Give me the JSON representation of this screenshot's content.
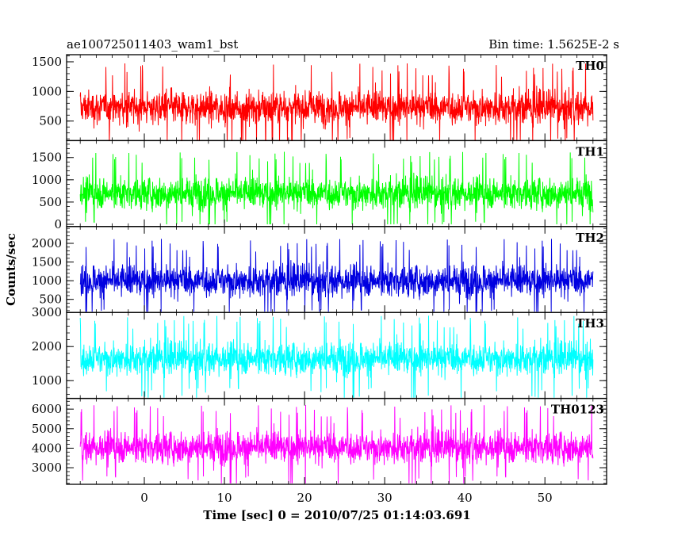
{
  "header": {
    "title": "ae100725011403_wam1_bst",
    "bin_time": "Bin time: 1.5625E-2 s"
  },
  "chart_data": {
    "type": "line",
    "title": "ae100725011403_wam1_bst",
    "subtitle": "Bin time: 1.5625E-2 s",
    "xlabel": "Time [sec] 0 = 2010/07/25 01:14:03.691",
    "ylabel": "Counts/sec",
    "xlim": [
      -9.7,
      57.7
    ],
    "x_ticks": [
      0,
      10,
      20,
      30,
      40,
      50
    ],
    "x_tick_labels": [
      "0",
      "10",
      "20",
      "30",
      "40",
      "50"
    ],
    "data_x_range": [
      -8.0,
      56.0
    ],
    "bin_time": 0.015625,
    "grid": false,
    "panels": [
      {
        "name": "TH0",
        "color": "#ff0000",
        "ylim": [
          170,
          1620
        ],
        "y_ticks": [
          500,
          1000,
          1500
        ],
        "y_tick_labels": [
          "500",
          "1000",
          "1500"
        ],
        "mean": 730,
        "min": 120,
        "max": 1600
      },
      {
        "name": "TH1",
        "color": "#00ff00",
        "ylim": [
          -50,
          1880
        ],
        "y_ticks": [
          0,
          500,
          1000,
          1500
        ],
        "y_tick_labels": [
          "0",
          "500",
          "1000",
          "1500"
        ],
        "mean": 700,
        "min": 0,
        "max": 1850
      },
      {
        "name": "TH2",
        "color": "#0000e0",
        "ylim": [
          150,
          2450
        ],
        "y_ticks": [
          500,
          1000,
          1500,
          2000
        ],
        "y_tick_labels": [
          "500",
          "1000",
          "1500",
          "2000"
        ],
        "mean": 1000,
        "min": 170,
        "max": 2400
      },
      {
        "name": "TH3",
        "color": "#00ffff",
        "ylim": [
          480,
          3000
        ],
        "y_ticks": [
          1000,
          2000,
          3000
        ],
        "y_tick_labels": [
          "1000",
          "2000",
          "3000"
        ],
        "mean": 1650,
        "min": 500,
        "max": 3000
      },
      {
        "name": "TH0123",
        "color": "#ff00ff",
        "ylim": [
          2150,
          6550
        ],
        "y_ticks": [
          3000,
          4000,
          5000,
          6000
        ],
        "y_tick_labels": [
          "3000",
          "4000",
          "5000",
          "6000"
        ],
        "mean": 4050,
        "min": 2200,
        "max": 6500
      }
    ]
  }
}
